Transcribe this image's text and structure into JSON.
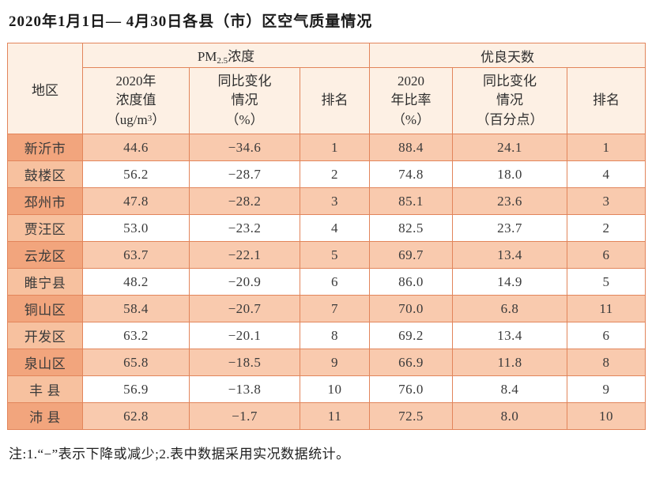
{
  "title": "2020年1月1日— 4月30日各县（市）区空气质量情况",
  "colors": {
    "border": "#e2855b",
    "header-bg": "#fdf0e4",
    "row-odd-bg": "#f9caae",
    "row-even-bg": "#ffffff",
    "region-odd-bg": "#f2a57d",
    "region-even-bg": "#f7c19f",
    "text": "#3a3a3a"
  },
  "table": {
    "header": {
      "region": "地区",
      "pm_group": {
        "prefix": "PM",
        "sub": "2.5",
        "suffix": "浓度"
      },
      "good_days_group": "优良天数",
      "concentration": {
        "line1": "2020年",
        "line2": "浓度值",
        "line3_pre": "（ug/m",
        "line3_sup": "3",
        "line3_post": "）"
      },
      "concentration_change": "同比变化\n情况\n（%）",
      "pm_rank": "排名",
      "ratio": "2020\n年比率\n（%）",
      "ratio_change": "同比变化\n情况\n（百分点）",
      "days_rank": "排名"
    },
    "columns": [
      "region",
      "concentration",
      "concentration_change",
      "pm_rank",
      "ratio",
      "ratio_change",
      "days_rank"
    ],
    "rows": [
      {
        "region": "新沂市",
        "concentration": "44.6",
        "concentration_change": "−34.6",
        "pm_rank": "1",
        "ratio": "88.4",
        "ratio_change": "24.1",
        "days_rank": "1"
      },
      {
        "region": "鼓楼区",
        "concentration": "56.2",
        "concentration_change": "−28.7",
        "pm_rank": "2",
        "ratio": "74.8",
        "ratio_change": "18.0",
        "days_rank": "4"
      },
      {
        "region": "邳州市",
        "concentration": "47.8",
        "concentration_change": "−28.2",
        "pm_rank": "3",
        "ratio": "85.1",
        "ratio_change": "23.6",
        "days_rank": "3"
      },
      {
        "region": "贾汪区",
        "concentration": "53.0",
        "concentration_change": "−23.2",
        "pm_rank": "4",
        "ratio": "82.5",
        "ratio_change": "23.7",
        "days_rank": "2"
      },
      {
        "region": "云龙区",
        "concentration": "63.7",
        "concentration_change": "−22.1",
        "pm_rank": "5",
        "ratio": "69.7",
        "ratio_change": "13.4",
        "days_rank": "6"
      },
      {
        "region": "睢宁县",
        "concentration": "48.2",
        "concentration_change": "−20.9",
        "pm_rank": "6",
        "ratio": "86.0",
        "ratio_change": "14.9",
        "days_rank": "5"
      },
      {
        "region": "铜山区",
        "concentration": "58.4",
        "concentration_change": "−20.7",
        "pm_rank": "7",
        "ratio": "70.0",
        "ratio_change": "6.8",
        "days_rank": "11"
      },
      {
        "region": "开发区",
        "concentration": "63.2",
        "concentration_change": "−20.1",
        "pm_rank": "8",
        "ratio": "69.2",
        "ratio_change": "13.4",
        "days_rank": "6"
      },
      {
        "region": "泉山区",
        "concentration": "65.8",
        "concentration_change": "−18.5",
        "pm_rank": "9",
        "ratio": "66.9",
        "ratio_change": "11.8",
        "days_rank": "8"
      },
      {
        "region": "丰 县",
        "concentration": "56.9",
        "concentration_change": "−13.8",
        "pm_rank": "10",
        "ratio": "76.0",
        "ratio_change": "8.4",
        "days_rank": "9"
      },
      {
        "region": "沛 县",
        "concentration": "62.8",
        "concentration_change": "−1.7",
        "pm_rank": "11",
        "ratio": "72.5",
        "ratio_change": "8.0",
        "days_rank": "10"
      }
    ]
  },
  "note": "注:1.“−”表示下降或减少;2.表中数据采用实况数据统计。"
}
